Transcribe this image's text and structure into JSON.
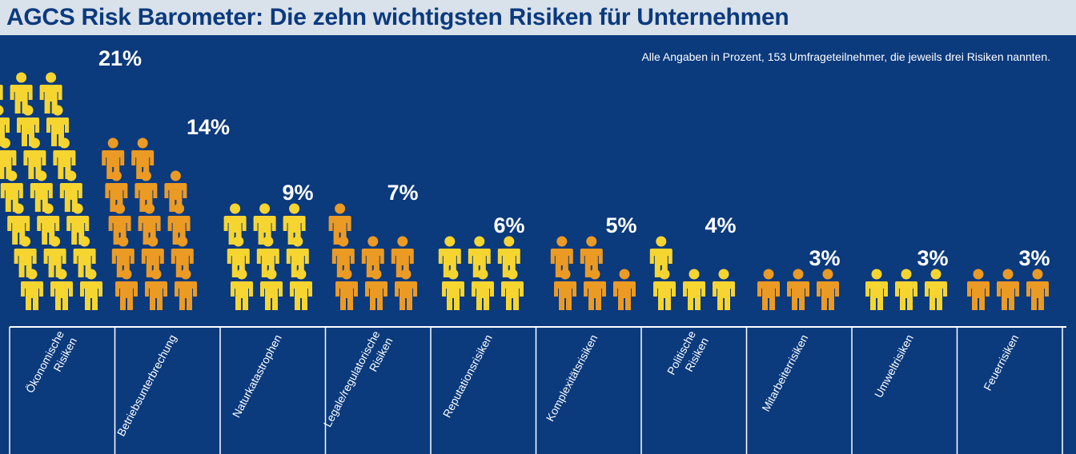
{
  "header": {
    "title": "AGCS Risk Barometer: Die zehn wichtigsten Risiken für Unternehmen"
  },
  "note": "Alle Angaben in Prozent, 153 Umfrageteilnehmer, die jeweils drei Risiken nannten.",
  "colors": {
    "background": "#0b3a7d",
    "yellow": "#f7d531",
    "orange": "#eb9a24",
    "title_bar": "#d9e1ea"
  },
  "chart_data": {
    "type": "bar",
    "title": "AGCS Risk Barometer: Die zehn wichtigsten Risiken für Unternehmen",
    "xlabel": "",
    "ylabel": "",
    "categories": [
      "Ökonomische Risiken",
      "Betriebsunterbrechung",
      "Naturkatastrophen",
      "Legale/regulatorische Risiken",
      "Reputationsrisiken",
      "Komplexitätsrisiken",
      "Politische Risiken",
      "Mitarbeiterrisiken",
      "Umweltrisiken",
      "Feuerrisiken"
    ],
    "category_lines": [
      [
        "Ökonomische",
        "Risiken"
      ],
      [
        "Betriebsunterbrechung"
      ],
      [
        "Naturkatastrophen"
      ],
      [
        "Legale/regulatorische",
        "Risiken"
      ],
      [
        "Reputationsrisiken"
      ],
      [
        "Komplexitätsrisiken"
      ],
      [
        "Politische",
        "Risiken"
      ],
      [
        "Mitarbeiterrisiken"
      ],
      [
        "Umweltrisiken"
      ],
      [
        "Feuerrisiken"
      ]
    ],
    "values": [
      21,
      14,
      9,
      7,
      6,
      5,
      4,
      3,
      3,
      3
    ],
    "value_labels": [
      "21%",
      "14%",
      "9%",
      "7%",
      "6%",
      "5%",
      "4%",
      "3%",
      "3%",
      "3%"
    ],
    "figure_colors": [
      "yellow",
      "orange",
      "yellow",
      "orange",
      "yellow",
      "orange",
      "yellow",
      "orange",
      "yellow",
      "orange"
    ],
    "grid": false,
    "legend": "none"
  }
}
